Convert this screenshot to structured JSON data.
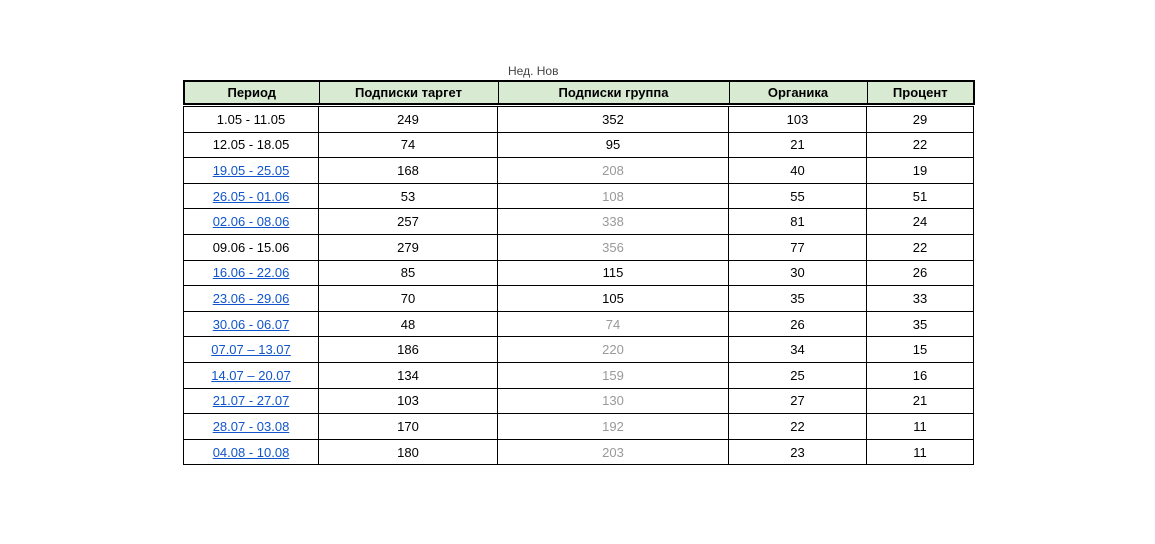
{
  "page": {
    "clipped_title": "Нед. Нов"
  },
  "colors": {
    "header_bg": "#d9ead3",
    "link": "#1155cc",
    "muted_text": "#999999",
    "border": "#000000"
  },
  "table": {
    "columns": [
      {
        "key": "period",
        "label": "Период"
      },
      {
        "key": "target",
        "label": "Подписки таргет"
      },
      {
        "key": "group",
        "label": "Подписки группа"
      },
      {
        "key": "organic",
        "label": "Органика"
      },
      {
        "key": "percent",
        "label": "Процент"
      }
    ],
    "rows": [
      {
        "period": "1.05 - 11.05",
        "period_link": false,
        "target": "249",
        "group": "352",
        "group_muted": false,
        "organic": "103",
        "percent": "29"
      },
      {
        "period": "12.05 - 18.05",
        "period_link": false,
        "target": "74",
        "group": "95",
        "group_muted": false,
        "organic": "21",
        "percent": "22"
      },
      {
        "period": "19.05 - 25.05",
        "period_link": true,
        "target": "168",
        "group": "208",
        "group_muted": true,
        "organic": "40",
        "percent": "19"
      },
      {
        "period": "26.05 - 01.06",
        "period_link": true,
        "target": "53",
        "group": "108",
        "group_muted": true,
        "organic": "55",
        "percent": "51"
      },
      {
        "period": "02.06 - 08.06",
        "period_link": true,
        "target": "257",
        "group": "338",
        "group_muted": true,
        "organic": "81",
        "percent": "24"
      },
      {
        "period": "09.06 - 15.06",
        "period_link": false,
        "target": "279",
        "group": "356",
        "group_muted": true,
        "organic": "77",
        "percent": "22"
      },
      {
        "period": "16.06 - 22.06",
        "period_link": true,
        "target": "85",
        "group": "115",
        "group_muted": false,
        "organic": "30",
        "percent": "26"
      },
      {
        "period": "23.06 - 29.06",
        "period_link": true,
        "target": "70",
        "group": "105",
        "group_muted": false,
        "organic": "35",
        "percent": "33"
      },
      {
        "period": "30.06 - 06.07",
        "period_link": true,
        "target": "48",
        "group": "74",
        "group_muted": true,
        "organic": "26",
        "percent": "35"
      },
      {
        "period": "07.07 – 13.07",
        "period_link": true,
        "target": "186",
        "group": "220",
        "group_muted": true,
        "organic": "34",
        "percent": "15"
      },
      {
        "period": "14.07 – 20.07",
        "period_link": true,
        "target": "134",
        "group": "159",
        "group_muted": true,
        "organic": "25",
        "percent": "16"
      },
      {
        "period": "21.07 - 27.07",
        "period_link": true,
        "target": "103",
        "group": "130",
        "group_muted": true,
        "organic": "27",
        "percent": "21"
      },
      {
        "period": "28.07 - 03.08",
        "period_link": true,
        "target": "170",
        "group": "192",
        "group_muted": true,
        "organic": "22",
        "percent": "11"
      },
      {
        "period": "04.08 - 10.08",
        "period_link": true,
        "target": "180",
        "group": "203",
        "group_muted": true,
        "organic": "23",
        "percent": "11"
      }
    ]
  }
}
